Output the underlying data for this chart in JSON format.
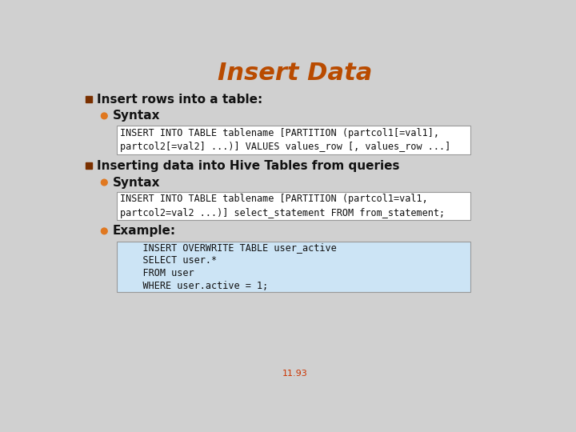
{
  "title": "Insert Data",
  "title_color": "#B94B00",
  "bg_color": "#D0D0D0",
  "bullet1_text": "Insert rows into a table:",
  "bullet2_text": "Inserting data into Hive Tables from queries",
  "sub_bullet_color": "#E07820",
  "main_bullet_color": "#7A3000",
  "syntax_label": "Syntax",
  "example_label": "Example:",
  "code_box1_lines": [
    "INSERT INTO TABLE tablename [PARTITION (partcol1[=val1],",
    "partcol2[=val2] ...)] VALUES values_row [, values_row ...]"
  ],
  "code_box2_lines": [
    "INSERT INTO TABLE tablename [PARTITION (partcol1=val1,",
    "partcol2=val2 ...)] select_statement FROM from_statement;"
  ],
  "code_box3_lines": [
    "    INSERT OVERWRITE TABLE user_active",
    "    SELECT user.*",
    "    FROM user",
    "    WHERE user.active = 1;"
  ],
  "code_box1_bg": "#FFFFFF",
  "code_box2_bg": "#FFFFFF",
  "code_box3_bg": "#CCE4F5",
  "code_box_border": "#999999",
  "page_number": "11.93",
  "page_number_color": "#CC3300",
  "title_fontsize": 22,
  "body_fontsize": 11,
  "code_fontsize": 8.5
}
